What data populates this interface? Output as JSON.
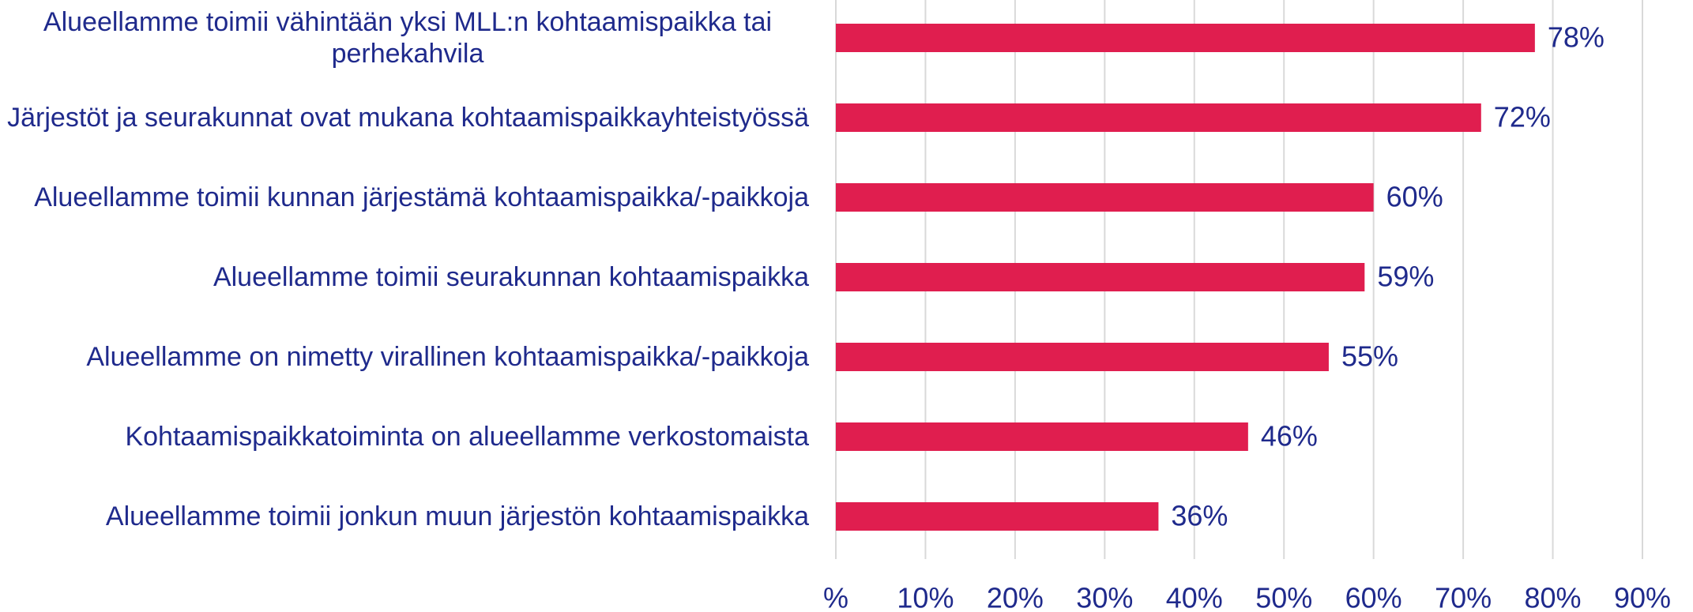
{
  "chart_data": {
    "type": "bar",
    "orientation": "horizontal",
    "categories": [
      "Alueellamme toimii vähintään yksi MLL:n kohtaamispaikka tai perhekahvila",
      "Järjestöt ja seurakunnat ovat mukana kohtaamispaikkayhteistyössä",
      "Alueellamme toimii kunnan järjestämä kohtaamispaikka/-paikkoja",
      "Alueellamme toimii seurakunnan kohtaamispaikka",
      "Alueellamme on nimetty virallinen kohtaamispaikka/-paikkoja",
      "Kohtaamispaikkatoiminta on alueellamme verkostomaista",
      "Alueellamme toimii jonkun muun järjestön kohtaamispaikka"
    ],
    "values": [
      78,
      72,
      60,
      59,
      55,
      46,
      36
    ],
    "value_labels": [
      "78%",
      "72%",
      "60%",
      "59%",
      "55%",
      "46%",
      "36%"
    ],
    "color": "#e01e4f",
    "xlim": [
      0,
      90
    ],
    "xticks": [
      {
        "value": 0,
        "label": "%"
      },
      {
        "value": 10,
        "label": "10%"
      },
      {
        "value": 20,
        "label": "20%"
      },
      {
        "value": 30,
        "label": "30%"
      },
      {
        "value": 40,
        "label": "40%"
      },
      {
        "value": 50,
        "label": "50%"
      },
      {
        "value": 60,
        "label": "60%"
      },
      {
        "value": 70,
        "label": "70%"
      },
      {
        "value": 80,
        "label": "80%"
      },
      {
        "value": 90,
        "label": "90%"
      }
    ],
    "grid": true
  }
}
